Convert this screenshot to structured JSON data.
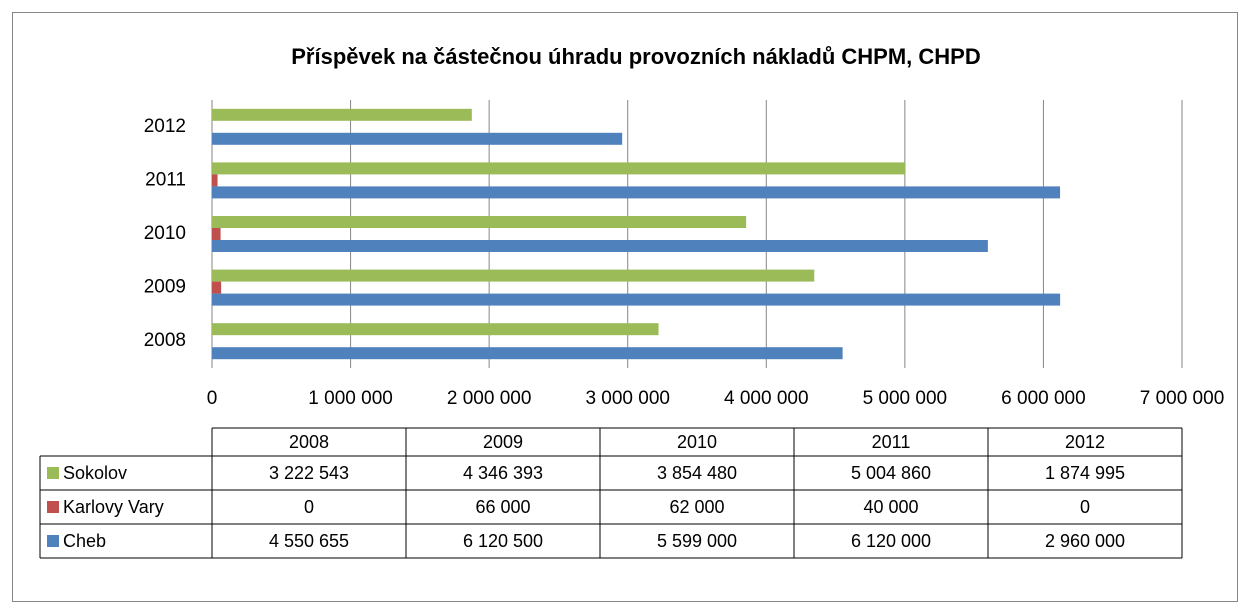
{
  "chart_data": {
    "type": "bar",
    "orientation": "horizontal",
    "title": "Příspěvek na částečnou úhradu provozních nákladů CHPM, CHPD",
    "categories": [
      "2008",
      "2009",
      "2010",
      "2011",
      "2012"
    ],
    "series": [
      {
        "name": "Sokolov",
        "color": "#9bbb59",
        "values": [
          3222543,
          4346393,
          3854480,
          5004860,
          1874995
        ],
        "value_labels": [
          "3 222 543",
          "4 346 393",
          "3 854 480",
          "5 004 860",
          "1 874 995"
        ]
      },
      {
        "name": "Karlovy Vary",
        "color": "#c0504d",
        "values": [
          0,
          66000,
          62000,
          40000,
          0
        ],
        "value_labels": [
          "0",
          "66 000",
          "62 000",
          "40 000",
          "0"
        ]
      },
      {
        "name": "Cheb",
        "color": "#4f81bd",
        "values": [
          4550655,
          6120500,
          5599000,
          6120000,
          2960000
        ],
        "value_labels": [
          "4 550 655",
          "6 120 500",
          "5 599 000",
          "6 120 000",
          "2 960 000"
        ]
      }
    ],
    "xlim": [
      0,
      7000000
    ],
    "xticks": [
      0,
      {
        "value": 1000000,
        "label": "1 000 000"
      },
      {
        "value": 2000000,
        "label": "2 000 000"
      },
      {
        "value": 3000000,
        "label": "3 000 000"
      },
      {
        "value": 4000000,
        "label": "4 000 000"
      },
      {
        "value": 5000000,
        "label": "5 000 000"
      },
      {
        "value": 6000000,
        "label": "6 000 000"
      },
      {
        "value": 7000000,
        "label": "7 000 000"
      }
    ],
    "grid": true,
    "data_table": true
  }
}
